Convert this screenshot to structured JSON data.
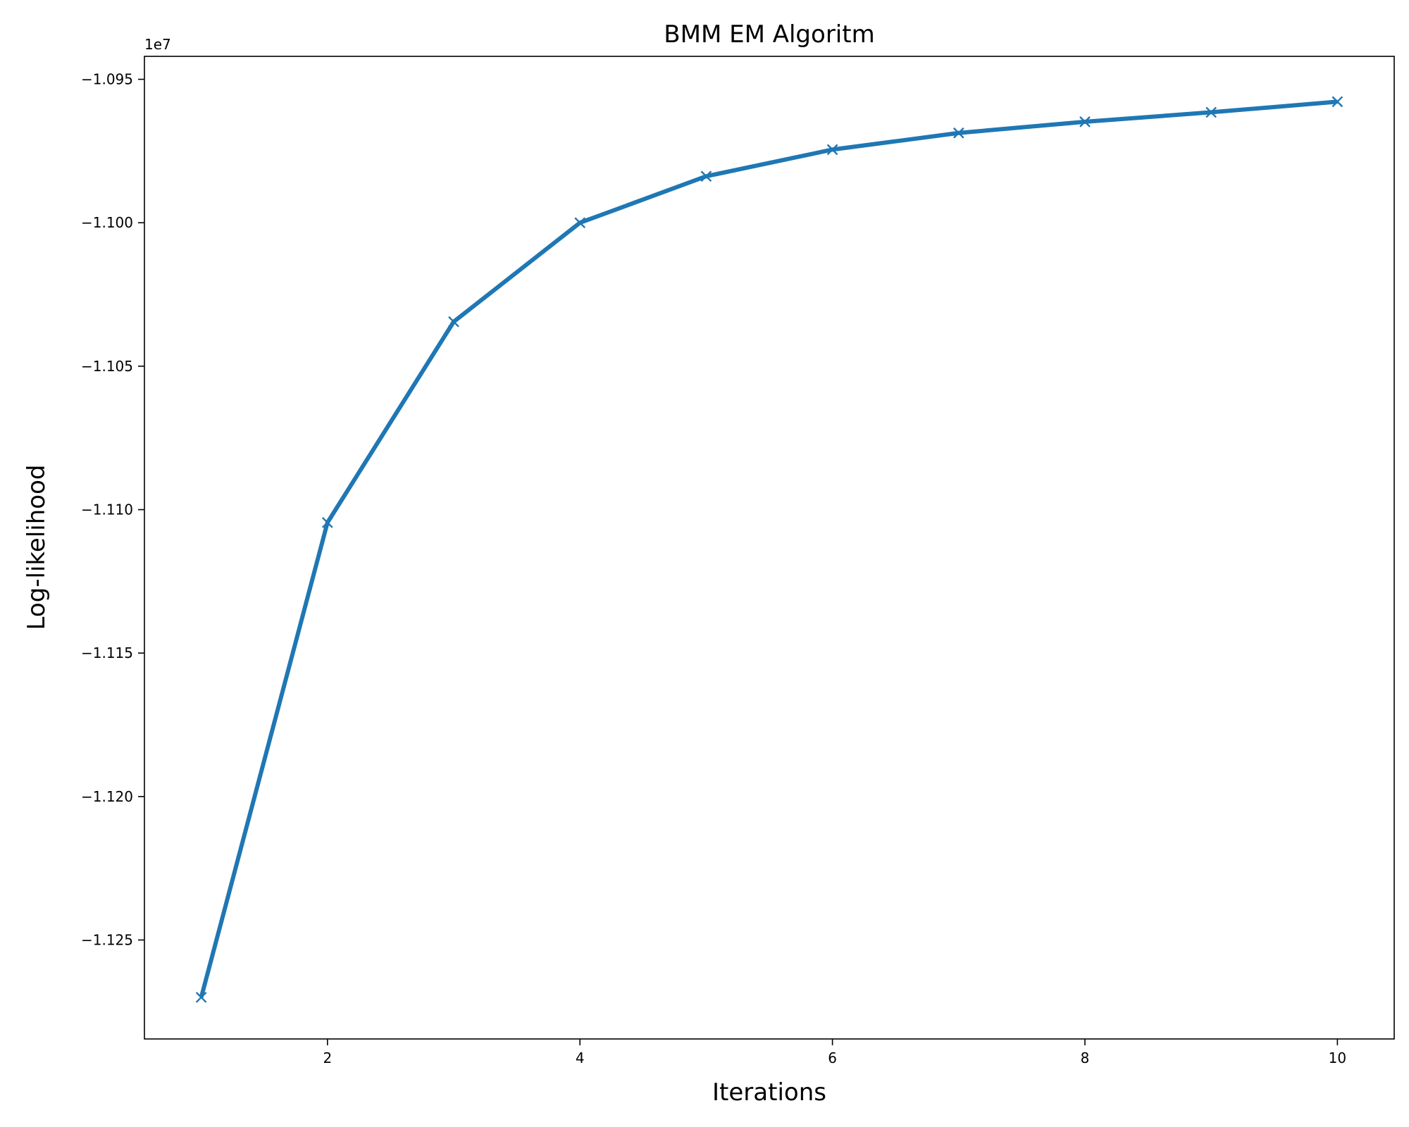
{
  "chart_data": {
    "type": "line",
    "title": "BMM EM Algoritm",
    "xlabel": "Iterations",
    "ylabel": "Log-likelihood",
    "y_offset_label": "1e7",
    "x": [
      1,
      2,
      3,
      4,
      5,
      6,
      7,
      8,
      9,
      10
    ],
    "series": [
      {
        "values": [
          -11.27,
          -11.1045,
          -11.0345,
          -11.0,
          -10.9838,
          -10.9745,
          -10.9687,
          -10.9648,
          -10.9615,
          -10.9578
        ],
        "marker": "x",
        "color": "#1f77b4"
      }
    ],
    "xlim": [
      0.55,
      10.45
    ],
    "ylim": [
      -11.2845,
      -10.942
    ],
    "x_ticks": [
      2,
      4,
      6,
      8,
      10
    ],
    "x_tick_labels": [
      "2",
      "4",
      "6",
      "8",
      "10"
    ],
    "y_ticks": [
      -11.25,
      -11.2,
      -11.15,
      -11.1,
      -11.05,
      -11.0,
      -10.95
    ],
    "y_tick_labels": [
      "−1.125",
      "−1.120",
      "−1.115",
      "−1.110",
      "−1.105",
      "−1.100",
      "−1.095"
    ],
    "grid": false,
    "legend": "none"
  }
}
